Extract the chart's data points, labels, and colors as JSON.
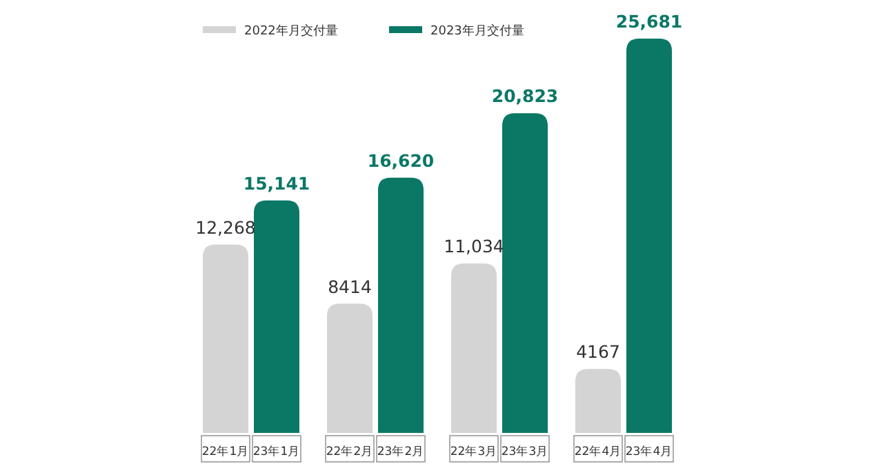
{
  "chart_data": {
    "type": "bar",
    "legend": "top left",
    "categories": [
      "22年1月",
      "23年1月",
      "22年2月",
      "23年2月",
      "22年3月",
      "23年3月",
      "22年4月",
      "23年4月"
    ],
    "series": [
      {
        "name": "2022年月交付量",
        "color": "#d4d4d4",
        "values": [
          12268,
          null,
          8414,
          null,
          11034,
          null,
          4167,
          null
        ],
        "value_labels": [
          "12,268",
          null,
          "8414",
          null,
          "11,034",
          null,
          "4167",
          null
        ]
      },
      {
        "name": "2023年月交付量",
        "color": "#0b7866",
        "values": [
          null,
          15141,
          null,
          16620,
          null,
          20823,
          null,
          25681
        ],
        "value_labels": [
          null,
          "15,141",
          null,
          "16,620",
          null,
          "20,823",
          null,
          "25,681"
        ]
      }
    ]
  }
}
